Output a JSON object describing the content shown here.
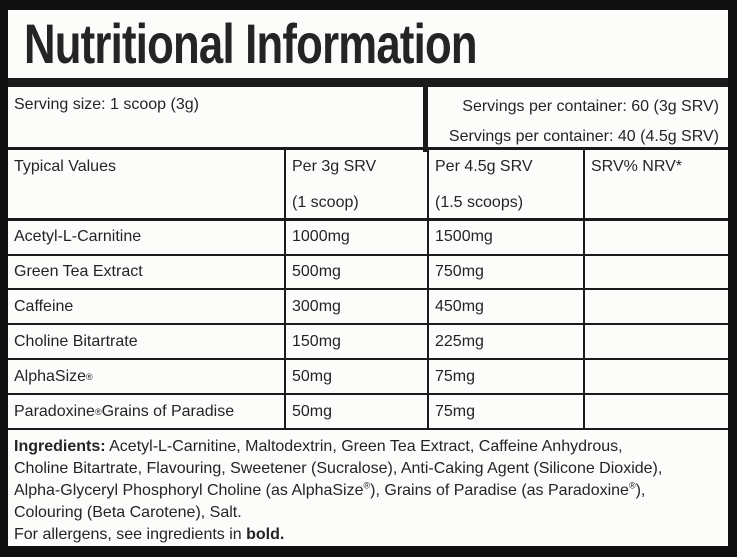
{
  "title": "Nutritional Information",
  "serving": {
    "size": "Serving size: 1 scoop (3g)",
    "per_container_3g": "Servings per container: 60 (3g SRV)",
    "per_container_45g": "Servings per container: 40 (4.5g SRV)"
  },
  "table": {
    "headers": {
      "col1": "Typical Values",
      "col2_line1": "Per 3g SRV",
      "col2_line2": "(1 scoop)",
      "col3_line1": "Per 4.5g SRV",
      "col3_line2": "(1.5 scoops)",
      "col4": "SRV% NRV*"
    },
    "rows": [
      {
        "name": "Acetyl-L-Carnitine",
        "per_3g": "1000mg",
        "per_45g": "1500mg",
        "srv_nrv": ""
      },
      {
        "name": "Green Tea Extract",
        "per_3g": "500mg",
        "per_45g": "750mg",
        "srv_nrv": ""
      },
      {
        "name": "Caffeine",
        "per_3g": "300mg",
        "per_45g": "450mg",
        "srv_nrv": ""
      },
      {
        "name": "Choline Bitartrate",
        "per_3g": "150mg",
        "per_45g": "225mg",
        "srv_nrv": ""
      },
      {
        "name": "AlphaSize®",
        "per_3g": "50mg",
        "per_45g": "75mg",
        "srv_nrv": ""
      },
      {
        "name": "Paradoxine® Grains of Paradise",
        "per_3g": "50mg",
        "per_45g": "75mg",
        "srv_nrv": ""
      }
    ]
  },
  "ingredients": {
    "label": "Ingredients:",
    "line1": "Acetyl-L-Carnitine, Maltodextrin, Green Tea Extract, Caffeine Anhydrous,",
    "line2": "Choline Bitartrate, Flavouring, Sweetener (Sucralose), Anti-Caking Agent (Silicone Dioxide),",
    "line3": "Alpha-Glyceryl Phosphoryl Choline (as AlphaSize®), Grains of Paradise (as Paradoxine®),",
    "line4": "Colouring (Beta Carotene), Salt.",
    "allergen_prefix": "For allergens, see ingredients in ",
    "allergen_bold": "bold."
  },
  "colors": {
    "outer_bg": "#101010",
    "label_bg": "#fcfcfb",
    "text": "#262324",
    "border": "#1c1b1b"
  }
}
